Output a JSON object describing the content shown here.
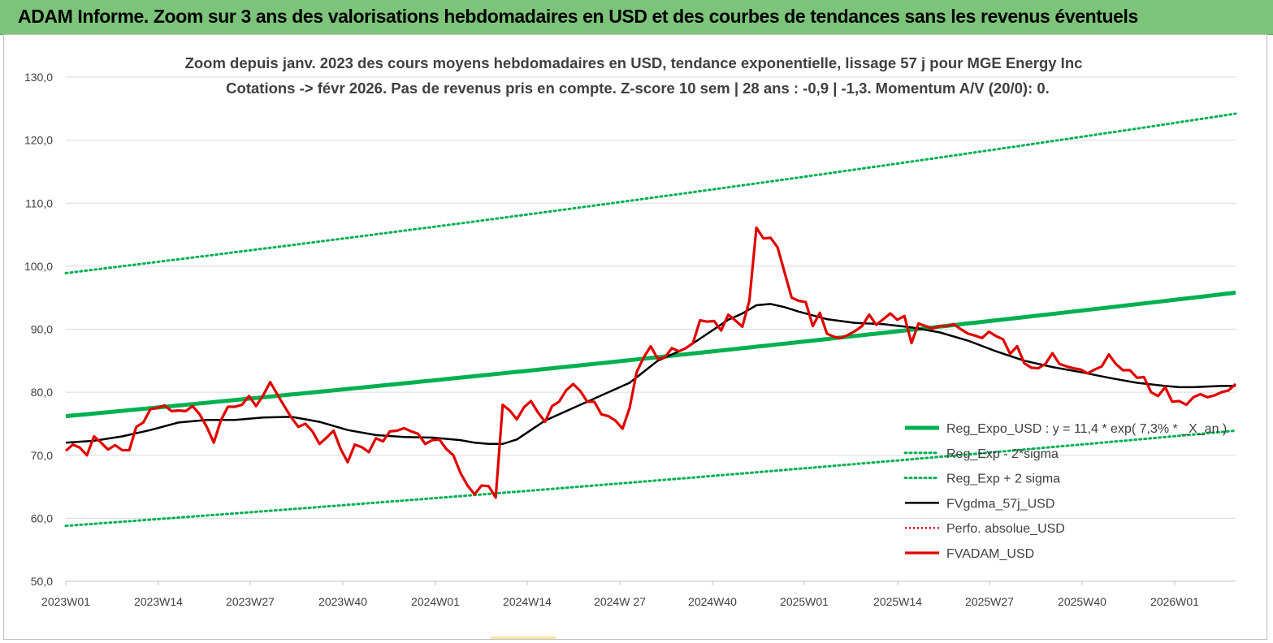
{
  "header": {
    "title": "ADAM Informe. Zoom sur 3 ans des valorisations hebdomadaires en USD et des courbes de tendances sans les revenus éventuels"
  },
  "chart_data": {
    "type": "line",
    "title_line1": "Zoom depuis janv. 2023 des cours moyens hebdomadaires en USD, tendance exponentielle, lissage 57 j pour MGE Energy Inc",
    "title_line2": "Cotations -> févr 2026.  Pas de revenus pris en compte. Z-score 10 sem | 28 ans : -0,9 | -1,3. Momentum A/V (20/0): 0.",
    "xlabel": "",
    "ylabel": "",
    "ylim": [
      50,
      130
    ],
    "yticks": [
      "50,0",
      "60,0",
      "70,0",
      "80,0",
      "90,0",
      "100,0",
      "110,0",
      "120,0",
      "130,0"
    ],
    "xticks": [
      "2023W01",
      "2023W14",
      "2023W27",
      "2023W40",
      "2024W01",
      "2024W14",
      "2024W 27",
      "2024W40",
      "2025W01",
      "2025W14",
      "2025W27",
      "2025W40",
      "2026W01"
    ],
    "x_range_weeks": [
      0,
      166
    ],
    "grid": "horizontal",
    "legend_position": "bottom-right",
    "colors": {
      "reg_expo": "#00b050",
      "bands": "#00b050",
      "fvgdma": "#000000",
      "perfo": "#e00000",
      "fvadam": "#e00000"
    },
    "series": [
      {
        "name": "Reg_Expo_USD : y = 11,4 * exp( 7,3% * _X_an )",
        "style": "thick-green",
        "x": [
          0,
          166
        ],
        "values": [
          76.2,
          95.8
        ],
        "interp": "exp"
      },
      {
        "name": "Reg_Exp - 2*sigma",
        "style": "dotted-green",
        "x": [
          0,
          166
        ],
        "values": [
          58.8,
          73.9
        ],
        "interp": "exp"
      },
      {
        "name": "Reg_Exp + 2 sigma",
        "style": "dotted-green",
        "x": [
          0,
          166
        ],
        "values": [
          98.9,
          124.2
        ],
        "interp": "exp"
      },
      {
        "name": "FVgdma_57j_USD",
        "style": "black",
        "x": [
          0,
          4,
          8,
          12,
          16,
          20,
          24,
          28,
          32,
          36,
          40,
          44,
          48,
          52,
          56,
          58,
          60,
          62,
          64,
          68,
          72,
          76,
          80,
          84,
          86,
          88,
          90,
          92,
          94,
          96,
          98,
          100,
          102,
          104,
          108,
          112,
          116,
          120,
          124,
          128,
          132,
          136,
          140,
          144,
          148,
          152,
          156,
          158,
          160,
          164,
          166
        ],
        "values": [
          72.0,
          72.3,
          73.0,
          74.0,
          75.2,
          75.6,
          75.6,
          76.0,
          76.1,
          75.3,
          74.0,
          73.2,
          72.9,
          72.8,
          72.4,
          72.0,
          71.8,
          71.8,
          72.5,
          75.5,
          77.5,
          79.5,
          81.5,
          85.0,
          86.0,
          87.0,
          88.5,
          90.0,
          91.5,
          92.5,
          93.8,
          94.0,
          93.5,
          92.8,
          91.6,
          91.0,
          90.8,
          90.3,
          89.5,
          88.2,
          86.5,
          85.0,
          84.0,
          83.2,
          82.3,
          81.5,
          81.0,
          80.8,
          80.8,
          81.0,
          81.0
        ],
        "interp": "linear"
      },
      {
        "name": "Perfo. absolue_USD",
        "style": "dotted-red",
        "x": [],
        "values": [],
        "interp": "linear"
      },
      {
        "name": "FVADAM_USD",
        "style": "thick-red",
        "x": [
          0,
          1,
          2,
          3,
          4,
          5,
          6,
          7,
          8,
          9,
          10,
          11,
          12,
          13,
          14,
          15,
          16,
          17,
          18,
          19,
          20,
          21,
          22,
          23,
          24,
          25,
          26,
          27,
          28,
          29,
          30,
          31,
          32,
          33,
          34,
          35,
          36,
          37,
          38,
          39,
          40,
          41,
          42,
          43,
          44,
          45,
          46,
          47,
          48,
          49,
          50,
          51,
          52,
          53,
          54,
          55,
          56,
          57,
          58,
          59,
          60,
          61,
          62,
          63,
          64,
          65,
          66,
          67,
          68,
          69,
          70,
          71,
          72,
          73,
          74,
          75,
          76,
          77,
          78,
          79,
          80,
          81,
          82,
          83,
          84,
          85,
          86,
          87,
          88,
          89,
          90,
          91,
          92,
          93,
          94,
          95,
          96,
          97,
          98,
          99,
          100,
          101,
          102,
          103,
          104,
          105,
          106,
          107,
          108,
          109,
          110,
          111,
          112,
          113,
          114,
          115,
          116,
          117,
          118,
          119,
          120,
          121,
          122,
          123,
          124,
          125,
          126,
          127,
          128,
          129,
          130,
          131,
          132,
          133,
          134,
          135,
          136,
          137,
          138,
          139,
          140,
          141,
          142,
          143,
          144,
          145,
          146,
          147,
          148,
          149,
          150,
          151,
          152,
          153,
          154,
          155,
          156,
          157,
          158,
          159,
          160,
          161,
          162,
          163,
          164,
          165,
          166
        ],
        "values": [
          70.7,
          71.7,
          71.2,
          70.0,
          73.0,
          72.0,
          70.9,
          71.6,
          70.8,
          70.8,
          74.5,
          75.2,
          77.3,
          77.5,
          77.9,
          77.0,
          77.1,
          77.0,
          77.8,
          76.5,
          74.5,
          72.0,
          75.5,
          77.7,
          77.7,
          78.0,
          79.4,
          77.8,
          79.5,
          81.6,
          79.7,
          77.8,
          76.0,
          74.5,
          75.0,
          73.8,
          71.8,
          72.8,
          73.9,
          71.0,
          68.9,
          71.7,
          71.3,
          70.5,
          72.7,
          72.2,
          73.8,
          73.9,
          74.3,
          73.8,
          73.4,
          71.8,
          72.4,
          72.5,
          71.0,
          70.0,
          67.2,
          65.2,
          63.8,
          65.2,
          65.1,
          63.3,
          78.0,
          77.1,
          75.7,
          77.6,
          78.6,
          76.8,
          75.3,
          77.8,
          78.5,
          80.3,
          81.3,
          80.2,
          78.5,
          78.5,
          76.5,
          76.2,
          75.5,
          74.2,
          77.5,
          83.2,
          85.5,
          87.3,
          85.3,
          85.5,
          87.0,
          86.5,
          87.0,
          87.8,
          91.4,
          91.2,
          91.3,
          89.8,
          92.3,
          91.4,
          90.4,
          94.5,
          106.1,
          104.4,
          104.5,
          103.0,
          99.0,
          95.0,
          94.5,
          94.3,
          90.5,
          92.6,
          89.3,
          88.8,
          88.6,
          89.1,
          89.7,
          90.5,
          92.3,
          90.7,
          91.6,
          92.5,
          91.5,
          92.1,
          87.8,
          90.9,
          90.5,
          90.1,
          90.5,
          90.5,
          90.8,
          90.0,
          89.3,
          89.0,
          88.6,
          89.6,
          88.9,
          88.4,
          86.1,
          87.3,
          84.6,
          83.9,
          83.8,
          84.5,
          86.2,
          84.5,
          84.1,
          83.8,
          83.6,
          83.0,
          83.6,
          84.1,
          86.0,
          84.5,
          83.5,
          83.5,
          82.3,
          82.4,
          80.0,
          79.4,
          80.8,
          78.5,
          78.6,
          78.0,
          79.2,
          79.7,
          79.2,
          79.5,
          80.0,
          80.3,
          81.3
        ],
        "interp": "linear"
      }
    ]
  }
}
